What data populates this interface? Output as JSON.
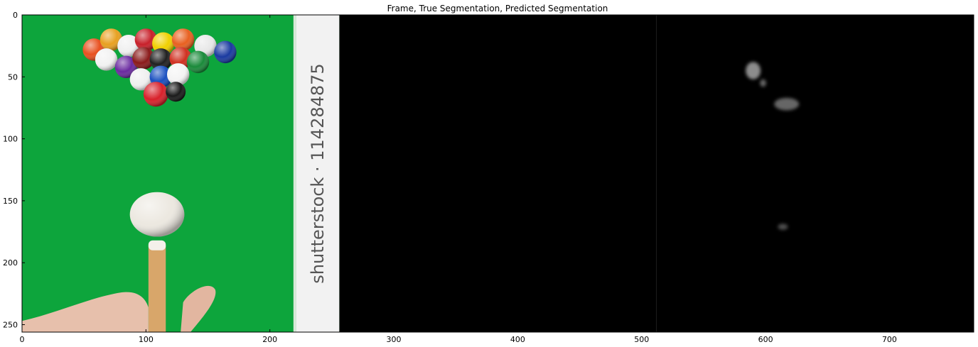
{
  "chart_data": {
    "type": "image",
    "title": "Frame, True Segmentation, Predicted Segmentation",
    "xlim": [
      0,
      768
    ],
    "ylim": [
      256,
      0
    ],
    "x_ticks": [
      0,
      100,
      200,
      300,
      400,
      500,
      600,
      700
    ],
    "y_ticks": [
      0,
      50,
      100,
      150,
      200,
      250
    ],
    "panels": [
      {
        "name": "Frame",
        "x_range": [
          0,
          256
        ],
        "background": "#0da53c"
      },
      {
        "name": "True Segmentation",
        "x_range": [
          256,
          512
        ],
        "background": "#000000"
      },
      {
        "name": "Predicted Segmentation",
        "x_range": [
          512,
          768
        ],
        "background": "#000000"
      }
    ],
    "watermark_text": "shutterstock · 114284875",
    "predicted_blobs": [
      {
        "cx": 590,
        "cy": 45,
        "rx": 6,
        "ry": 7,
        "opacity": 0.55
      },
      {
        "cx": 598,
        "cy": 55,
        "rx": 2.5,
        "ry": 3,
        "opacity": 0.4
      },
      {
        "cx": 617,
        "cy": 72,
        "rx": 10,
        "ry": 5,
        "opacity": 0.4
      },
      {
        "cx": 614,
        "cy": 171,
        "rx": 4,
        "ry": 2.5,
        "opacity": 0.3
      }
    ],
    "balls": [
      {
        "cx": 58,
        "cy": 28,
        "r": 9,
        "color": "#e8501f"
      },
      {
        "cx": 72,
        "cy": 20,
        "r": 9,
        "color": "#e8a020"
      },
      {
        "cx": 86,
        "cy": 25,
        "r": 9,
        "color": "#f0f0f0"
      },
      {
        "cx": 100,
        "cy": 20,
        "r": 9,
        "color": "#c8202a"
      },
      {
        "cx": 114,
        "cy": 23,
        "r": 9,
        "color": "#f0d000"
      },
      {
        "cx": 130,
        "cy": 20,
        "r": 9,
        "color": "#e86020"
      },
      {
        "cx": 148,
        "cy": 25,
        "r": 9,
        "color": "#e8e8e8"
      },
      {
        "cx": 164,
        "cy": 30,
        "r": 9,
        "color": "#1a3aa0"
      },
      {
        "cx": 68,
        "cy": 36,
        "r": 9,
        "color": "#f2f2f2"
      },
      {
        "cx": 84,
        "cy": 42,
        "r": 9,
        "color": "#6a2aa0"
      },
      {
        "cx": 98,
        "cy": 35,
        "r": 9,
        "color": "#8a1a1a"
      },
      {
        "cx": 112,
        "cy": 36,
        "r": 9,
        "color": "#202020"
      },
      {
        "cx": 128,
        "cy": 35,
        "r": 9,
        "color": "#d03020"
      },
      {
        "cx": 142,
        "cy": 38,
        "r": 9,
        "color": "#1a8a3a"
      },
      {
        "cx": 96,
        "cy": 52,
        "r": 9,
        "color": "#f0f0f0"
      },
      {
        "cx": 112,
        "cy": 50,
        "r": 9,
        "color": "#1a50c0"
      },
      {
        "cx": 126,
        "cy": 48,
        "r": 9,
        "color": "#f4f4f4"
      },
      {
        "cx": 108,
        "cy": 64,
        "r": 10,
        "color": "#d8202a"
      },
      {
        "cx": 124,
        "cy": 62,
        "r": 8,
        "color": "#1a1a1a"
      }
    ],
    "cue_ball": {
      "cx": 109,
      "cy": 161,
      "rx": 22,
      "ry": 18,
      "color": "#ece8e0"
    }
  }
}
